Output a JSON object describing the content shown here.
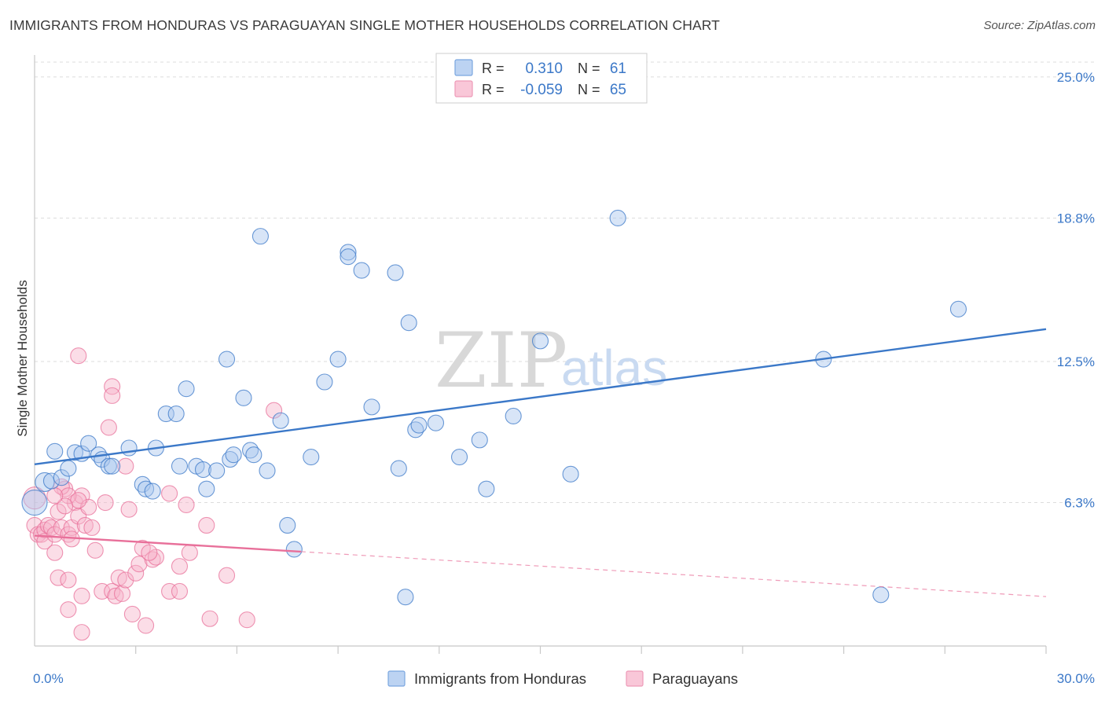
{
  "title": "IMMIGRANTS FROM HONDURAS VS PARAGUAYAN SINGLE MOTHER HOUSEHOLDS CORRELATION CHART",
  "source": "Source: ZipAtlas.com",
  "watermark": {
    "zip": "ZIP",
    "atlas": "atlas"
  },
  "colors": {
    "blue": "#3b78c8",
    "blue_fill": "#a9c6ee",
    "pink": "#e8709a",
    "pink_fill": "#f6b3c9",
    "grid": "#dcdcdc"
  },
  "legend": {
    "rows": [
      {
        "r_label": "R =",
        "r_value": "0.310",
        "n_label": "N =",
        "n_value": "61",
        "color": "blue"
      },
      {
        "r_label": "R =",
        "r_value": "-0.059",
        "n_label": "N =",
        "n_value": "65",
        "color": "pink"
      }
    ]
  },
  "chart_data": {
    "type": "scatter",
    "title": "IMMIGRANTS FROM HONDURAS VS PARAGUAYAN SINGLE MOTHER HOUSEHOLDS CORRELATION CHART",
    "xlabel": "",
    "ylabel": "Single Mother Households",
    "xlim": [
      0,
      30
    ],
    "ylim": [
      0,
      25.6
    ],
    "x_tick_labels": [
      {
        "value": 0,
        "label": "0.0%"
      },
      {
        "value": 30,
        "label": "30.0%"
      }
    ],
    "y_tick_labels": [
      {
        "value": 6.3,
        "label": "6.3%"
      },
      {
        "value": 12.5,
        "label": "12.5%"
      },
      {
        "value": 18.8,
        "label": "18.8%"
      },
      {
        "value": 25.0,
        "label": "25.0%"
      }
    ],
    "x_minor_ticks": [
      3,
      6,
      9,
      12,
      15,
      18,
      21,
      24,
      27,
      30
    ],
    "grid": true,
    "series": [
      {
        "name": "Immigrants from Honduras",
        "color": "blue",
        "trend": {
          "x0": 0,
          "y0": 7.98,
          "x1": 30,
          "y1": 13.92,
          "dashed_from": null
        },
        "points": [
          [
            0.0,
            6.3,
            16
          ],
          [
            0.3,
            7.2,
            12
          ],
          [
            0.5,
            7.25,
            10
          ],
          [
            0.8,
            7.4,
            10
          ],
          [
            1.0,
            7.8,
            10
          ],
          [
            1.2,
            8.5,
            10
          ],
          [
            1.4,
            8.45,
            10
          ],
          [
            1.6,
            8.9,
            10
          ],
          [
            1.9,
            8.4,
            10
          ],
          [
            2.0,
            8.2,
            10
          ],
          [
            2.2,
            7.9,
            10
          ],
          [
            2.3,
            7.9,
            10
          ],
          [
            2.8,
            8.7,
            10
          ],
          [
            3.2,
            7.1,
            10
          ],
          [
            3.3,
            6.9,
            10
          ],
          [
            3.5,
            6.8,
            10
          ],
          [
            3.6,
            8.7,
            10
          ],
          [
            3.9,
            10.2,
            10
          ],
          [
            4.2,
            10.2,
            10
          ],
          [
            4.3,
            7.9,
            10
          ],
          [
            4.5,
            11.3,
            10
          ],
          [
            4.8,
            7.9,
            10
          ],
          [
            5.0,
            7.75,
            10
          ],
          [
            5.1,
            6.9,
            10
          ],
          [
            5.4,
            7.7,
            10
          ],
          [
            5.7,
            12.6,
            10
          ],
          [
            5.8,
            8.2,
            10
          ],
          [
            5.9,
            8.4,
            10
          ],
          [
            6.2,
            10.9,
            10
          ],
          [
            6.4,
            8.6,
            10
          ],
          [
            6.5,
            8.4,
            10
          ],
          [
            6.7,
            18.0,
            10
          ],
          [
            6.9,
            7.7,
            10
          ],
          [
            7.3,
            9.9,
            10
          ],
          [
            7.5,
            5.3,
            10
          ],
          [
            7.7,
            4.25,
            10
          ],
          [
            8.2,
            8.3,
            10
          ],
          [
            8.6,
            11.6,
            10
          ],
          [
            9.0,
            12.6,
            10
          ],
          [
            9.3,
            17.3,
            10
          ],
          [
            9.3,
            17.1,
            10
          ],
          [
            9.7,
            16.5,
            10
          ],
          [
            10.0,
            10.5,
            10
          ],
          [
            10.7,
            16.4,
            10
          ],
          [
            10.8,
            7.8,
            10
          ],
          [
            11.0,
            2.15,
            10
          ],
          [
            11.1,
            14.2,
            10
          ],
          [
            11.3,
            9.5,
            10
          ],
          [
            11.4,
            9.7,
            10
          ],
          [
            11.9,
            9.8,
            10
          ],
          [
            12.6,
            8.3,
            10
          ],
          [
            13.2,
            9.05,
            10
          ],
          [
            13.4,
            6.9,
            10
          ],
          [
            14.2,
            10.1,
            10
          ],
          [
            15.0,
            13.4,
            10
          ],
          [
            15.9,
            7.55,
            10
          ],
          [
            17.3,
            18.8,
            10
          ],
          [
            23.4,
            12.6,
            10
          ],
          [
            27.4,
            14.8,
            10
          ],
          [
            25.1,
            2.25,
            10
          ],
          [
            0.6,
            8.55,
            10
          ]
        ]
      },
      {
        "name": "Paraguayans",
        "color": "pink",
        "trend": {
          "x0": 0,
          "y0": 4.85,
          "x1": 30,
          "y1": 2.17,
          "dashed_from": 7.9
        },
        "points": [
          [
            0.0,
            6.5,
            14
          ],
          [
            0.0,
            5.3,
            10
          ],
          [
            0.1,
            4.9,
            10
          ],
          [
            0.2,
            4.9,
            10
          ],
          [
            0.3,
            5.1,
            10
          ],
          [
            0.3,
            4.6,
            10
          ],
          [
            0.4,
            5.3,
            10
          ],
          [
            0.5,
            5.2,
            10
          ],
          [
            0.6,
            4.1,
            10
          ],
          [
            0.6,
            4.9,
            10
          ],
          [
            0.7,
            3.0,
            10
          ],
          [
            0.7,
            5.9,
            10
          ],
          [
            0.8,
            5.2,
            10
          ],
          [
            0.9,
            6.9,
            10
          ],
          [
            1.0,
            4.9,
            10
          ],
          [
            1.0,
            1.6,
            10
          ],
          [
            1.1,
            5.2,
            10
          ],
          [
            1.1,
            4.7,
            10
          ],
          [
            1.2,
            6.3,
            10
          ],
          [
            1.3,
            5.7,
            10
          ],
          [
            1.4,
            6.6,
            10
          ],
          [
            1.4,
            2.2,
            10
          ],
          [
            1.4,
            0.6,
            10
          ],
          [
            1.5,
            5.3,
            10
          ],
          [
            1.6,
            6.1,
            10
          ],
          [
            1.7,
            5.2,
            10
          ],
          [
            1.8,
            4.2,
            10
          ],
          [
            2.0,
            2.4,
            10
          ],
          [
            2.1,
            6.3,
            10
          ],
          [
            2.2,
            9.6,
            10
          ],
          [
            2.3,
            2.4,
            10
          ],
          [
            2.4,
            2.2,
            10
          ],
          [
            2.5,
            3.0,
            10
          ],
          [
            2.6,
            2.3,
            10
          ],
          [
            2.7,
            2.9,
            10
          ],
          [
            2.8,
            6.0,
            10
          ],
          [
            2.9,
            1.4,
            10
          ],
          [
            3.0,
            3.2,
            10
          ],
          [
            3.1,
            3.6,
            10
          ],
          [
            3.2,
            4.3,
            10
          ],
          [
            3.3,
            0.9,
            10
          ],
          [
            3.5,
            3.8,
            10
          ],
          [
            3.6,
            3.9,
            10
          ],
          [
            3.4,
            4.1,
            10
          ],
          [
            4.0,
            2.4,
            10
          ],
          [
            4.3,
            3.5,
            10
          ],
          [
            4.3,
            2.4,
            10
          ],
          [
            4.5,
            6.2,
            10
          ],
          [
            4.6,
            4.1,
            10
          ],
          [
            5.1,
            5.3,
            10
          ],
          [
            5.2,
            1.2,
            10
          ],
          [
            5.7,
            3.1,
            10
          ],
          [
            6.3,
            1.15,
            10
          ],
          [
            7.1,
            10.35,
            10
          ],
          [
            2.3,
            11.4,
            10
          ],
          [
            2.3,
            11.0,
            10
          ],
          [
            1.3,
            12.75,
            10
          ],
          [
            0.8,
            7.0,
            10
          ],
          [
            1.0,
            6.6,
            10
          ],
          [
            1.3,
            6.4,
            10
          ],
          [
            0.9,
            6.15,
            10
          ],
          [
            2.7,
            7.9,
            10
          ],
          [
            4.0,
            6.7,
            10
          ],
          [
            1.0,
            2.9,
            10
          ],
          [
            0.6,
            6.6,
            10
          ]
        ]
      }
    ]
  },
  "bottom_legend": {
    "items": [
      {
        "label": "Immigrants from Honduras",
        "color": "blue"
      },
      {
        "label": "Paraguayans",
        "color": "pink"
      }
    ]
  }
}
